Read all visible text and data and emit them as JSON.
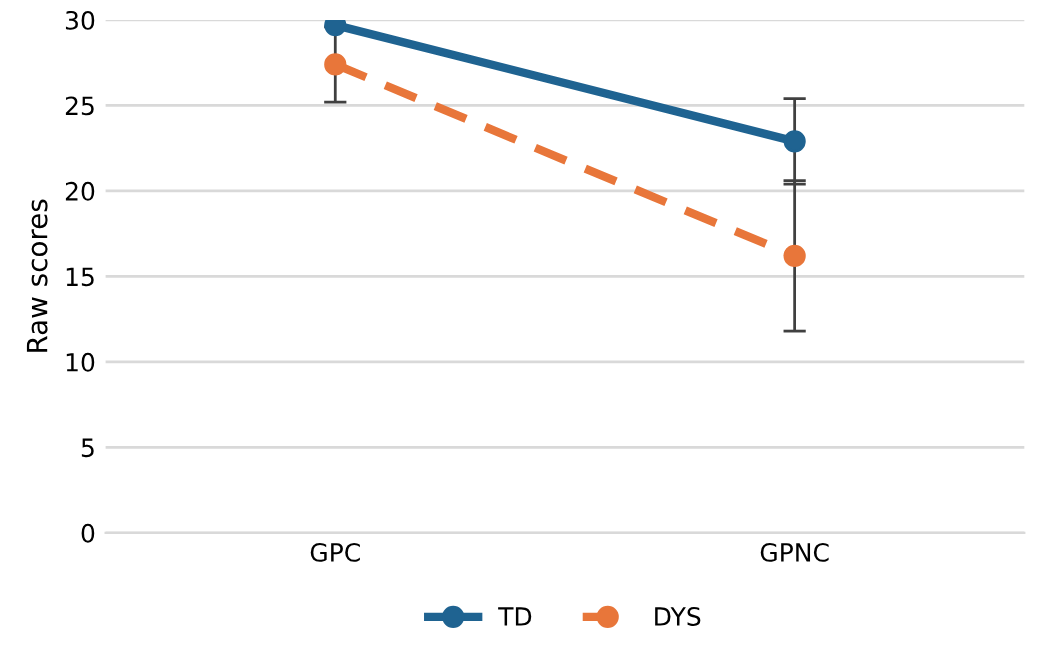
{
  "chart_data": {
    "type": "line",
    "ylabel": "Raw scores",
    "categories": [
      "GPC",
      "GPNC"
    ],
    "series": [
      {
        "name": "TD",
        "color": "#1f6391",
        "values": [
          29.7,
          22.9
        ],
        "errors": [
          null,
          2.5
        ],
        "line_style": "solid"
      },
      {
        "name": "DYS",
        "color": "#e8763a",
        "values": [
          27.4,
          16.2
        ],
        "errors": [
          2.2,
          4.4
        ],
        "line_style": "dashed"
      }
    ],
    "ylim": [
      0,
      30
    ],
    "yticks": [
      0,
      5,
      10,
      15,
      20,
      25,
      30
    ],
    "grid": "y",
    "legend": "bottom",
    "marker": "circle"
  }
}
